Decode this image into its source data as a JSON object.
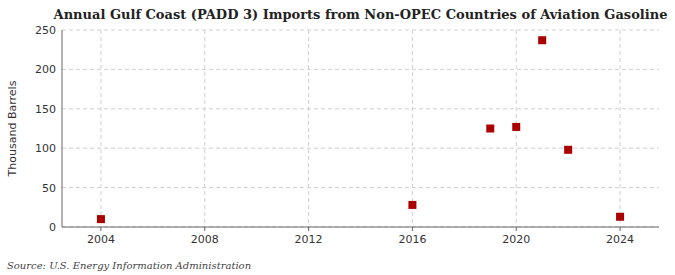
{
  "chart_data": {
    "type": "scatter",
    "title": "Annual Gulf Coast (PADD 3) Imports from Non-OPEC Countries of Aviation Gasoline",
    "ylabel": "Thousand Barrels",
    "source": "Source: U.S. Energy Information Administration",
    "x": [
      2004,
      2016,
      2019,
      2020,
      2021,
      2022,
      2024
    ],
    "values": [
      10,
      28,
      125,
      127,
      237,
      98,
      13
    ],
    "color": "#aa0000",
    "marker": "square",
    "xlim": [
      2002.5,
      2025.5
    ],
    "ylim": [
      0,
      250
    ],
    "xticks": [
      2004,
      2008,
      2012,
      2016,
      2020,
      2024
    ],
    "yticks": [
      0,
      50,
      100,
      150,
      200,
      250
    ],
    "grid": true
  }
}
